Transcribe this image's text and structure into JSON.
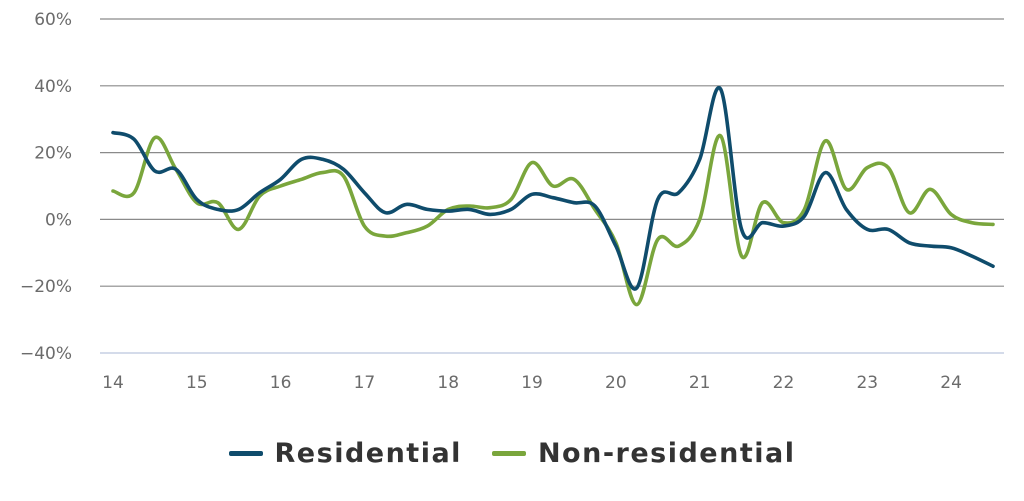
{
  "colors": {
    "residential": "#0f4c6c",
    "non_residential": "#7aa63c",
    "grid": "#8a8a8a",
    "axis_bottom": "#c6cfe4"
  },
  "chart_data": {
    "type": "line",
    "title": "",
    "xlabel": "",
    "ylabel": "",
    "xlim": [
      14,
      24.5
    ],
    "ylim": [
      -40,
      60
    ],
    "x_ticks": [
      14,
      15,
      16,
      17,
      18,
      19,
      20,
      21,
      22,
      23,
      24
    ],
    "x_tick_labels": [
      "14",
      "15",
      "16",
      "17",
      "18",
      "19",
      "20",
      "21",
      "22",
      "23",
      "24"
    ],
    "y_ticks": [
      -40,
      -20,
      0,
      20,
      40,
      60
    ],
    "y_tick_labels": [
      "−40%",
      "−20%",
      "0%",
      "20%",
      "40%",
      "60%"
    ],
    "grid": true,
    "legend": "bottom",
    "series": [
      {
        "name": "Residential",
        "color": "#0f4c6c",
        "x": [
          14.0,
          14.25,
          14.5,
          14.75,
          15.0,
          15.25,
          15.5,
          15.75,
          16.0,
          16.25,
          16.5,
          16.75,
          17.0,
          17.25,
          17.5,
          17.75,
          18.0,
          18.25,
          18.5,
          18.75,
          19.0,
          19.25,
          19.5,
          19.75,
          20.0,
          20.25,
          20.5,
          20.75,
          21.0,
          21.25,
          21.5,
          21.75,
          22.0,
          22.25,
          22.5,
          22.75,
          23.0,
          23.25,
          23.5,
          23.75,
          24.0,
          24.25,
          24.5
        ],
        "values": [
          26,
          24,
          14.5,
          15,
          6,
          3,
          3,
          8,
          12,
          18,
          18,
          15,
          8,
          2,
          4.5,
          3,
          2.5,
          3,
          1.5,
          3,
          7.5,
          6.5,
          5,
          4,
          -8,
          -20.5,
          6,
          8,
          18,
          39,
          -3,
          -1,
          -2,
          1,
          14,
          3,
          -3,
          -3,
          -7,
          -8,
          -8.5,
          -11,
          -14
        ]
      },
      {
        "name": "Non-residential",
        "color": "#7aa63c",
        "x": [
          14.0,
          14.25,
          14.5,
          14.75,
          15.0,
          15.25,
          15.5,
          15.75,
          16.0,
          16.25,
          16.5,
          16.75,
          17.0,
          17.25,
          17.5,
          17.75,
          18.0,
          18.25,
          18.5,
          18.75,
          19.0,
          19.25,
          19.5,
          19.75,
          20.0,
          20.25,
          20.5,
          20.75,
          21.0,
          21.25,
          21.5,
          21.75,
          22.0,
          22.25,
          22.5,
          22.75,
          23.0,
          23.25,
          23.5,
          23.75,
          24.0,
          24.25,
          24.5
        ],
        "values": [
          8.5,
          8,
          24.5,
          15,
          5,
          5,
          -3,
          7,
          10,
          12,
          14,
          13,
          -2,
          -5,
          -4,
          -2,
          3,
          4,
          3.5,
          6,
          17,
          10,
          12,
          3,
          -7,
          -25.5,
          -6,
          -8,
          0,
          25,
          -11,
          5,
          -1,
          3,
          23.5,
          9,
          15.5,
          15.5,
          2,
          9,
          1.5,
          -1,
          -1.5
        ]
      }
    ]
  }
}
